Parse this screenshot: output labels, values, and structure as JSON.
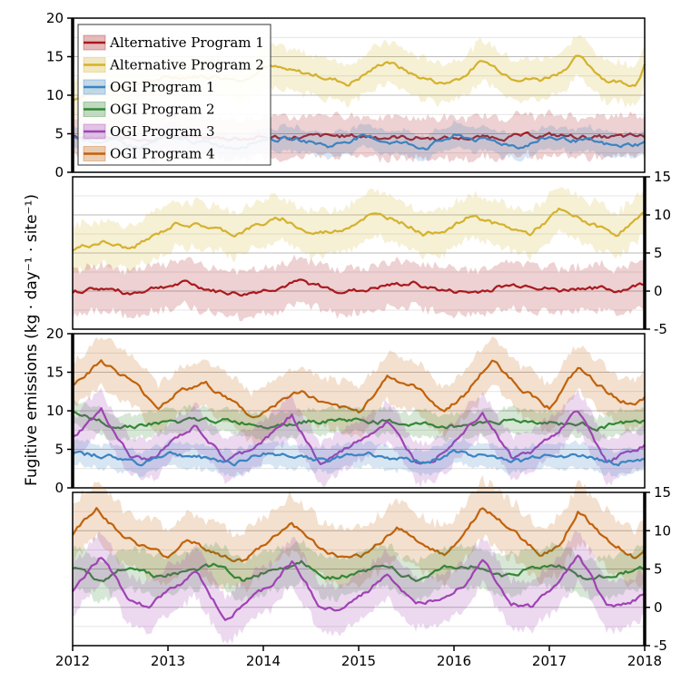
{
  "figure": {
    "ylabel": "Fugitive emissions (kg · day⁻¹ · site⁻¹)",
    "legend": [
      {
        "name": "Alternative Program 1",
        "color": "#a8191e"
      },
      {
        "name": "Alternative Program 2",
        "color": "#d4b22c"
      },
      {
        "name": "OGI Program 1",
        "color": "#3a84c1"
      },
      {
        "name": "OGI Program 2",
        "color": "#338634"
      },
      {
        "name": "OGI Program 3",
        "color": "#a042b4"
      },
      {
        "name": "OGI Program 4",
        "color": "#c1620b"
      }
    ]
  },
  "chart_data": [
    {
      "type": "line",
      "panel": 1,
      "y_axis_side": "left",
      "ylim": [
        0,
        20
      ],
      "yticks": [
        "0",
        "5",
        "10",
        "15",
        "20"
      ],
      "xlim": [
        2012,
        2018
      ],
      "grid": true,
      "legend_position": "top-left",
      "series": [
        {
          "name": "Alternative Program 2",
          "color": "#d4b22c",
          "band": 2.5,
          "x": [
            2012,
            2012.3,
            2012.6,
            2012.9,
            2013.2,
            2013.5,
            2013.8,
            2014,
            2014.3,
            2014.6,
            2014.9,
            2015.1,
            2015.3,
            2015.6,
            2015.9,
            2016.1,
            2016.3,
            2016.6,
            2016.9,
            2017.1,
            2017.3,
            2017.6,
            2017.9,
            2018
          ],
          "y": [
            9.5,
            11,
            11.5,
            12,
            12.5,
            12.5,
            12,
            14,
            13,
            12.5,
            11.5,
            13,
            14.5,
            12.5,
            11.5,
            12.5,
            14.5,
            12.5,
            12,
            13,
            15,
            12,
            11.5,
            14
          ]
        },
        {
          "name": "Alternative Program 1",
          "color": "#a8191e",
          "band": 2.5,
          "x": [
            2012,
            2012.5,
            2013,
            2013.5,
            2014,
            2014.5,
            2015,
            2015.5,
            2016,
            2016.5,
            2017,
            2017.5,
            2018
          ],
          "y": [
            4.5,
            4.3,
            4.6,
            4.4,
            4.5,
            4.6,
            4.7,
            4.5,
            4.4,
            4.6,
            4.8,
            4.5,
            4.6
          ]
        },
        {
          "name": "OGI Program 1",
          "color": "#3a84c1",
          "band": 1.5,
          "x": [
            2012,
            2012.4,
            2012.7,
            2013,
            2013.4,
            2013.7,
            2014,
            2014.4,
            2014.7,
            2015,
            2015.4,
            2015.7,
            2016,
            2016.4,
            2016.7,
            2017,
            2017.4,
            2017.7,
            2018
          ],
          "y": [
            4.5,
            4,
            3.2,
            4.5,
            3.8,
            3.3,
            4.4,
            4.2,
            3.4,
            4.6,
            3.9,
            3.3,
            4.7,
            4,
            3.4,
            4.5,
            4,
            3.3,
            3.8
          ]
        }
      ]
    },
    {
      "type": "line",
      "panel": 2,
      "y_axis_side": "right",
      "ylim": [
        -5,
        15
      ],
      "yticks": [
        "-5",
        "0",
        "5",
        "10",
        "15"
      ],
      "xlim": [
        2012,
        2018
      ],
      "grid": true,
      "series": [
        {
          "name": "Alternative Program 2",
          "color": "#d4b22c",
          "band": 2.8,
          "x": [
            2012,
            2012.3,
            2012.6,
            2012.9,
            2013.1,
            2013.4,
            2013.7,
            2013.9,
            2014.2,
            2014.5,
            2014.8,
            2015.1,
            2015.4,
            2015.7,
            2016,
            2016.2,
            2016.5,
            2016.8,
            2017.1,
            2017.4,
            2017.7,
            2018
          ],
          "y": [
            5.5,
            6.5,
            5.5,
            7.5,
            9,
            8.5,
            7.5,
            8.5,
            9.5,
            7.5,
            8,
            10,
            9.5,
            7.5,
            8.5,
            10,
            8.5,
            7.5,
            10.5,
            9,
            7.5,
            10
          ]
        },
        {
          "name": "Alternative Program 1",
          "color": "#a8191e",
          "band": 2.8,
          "x": [
            2012,
            2012.3,
            2012.6,
            2012.9,
            2013.2,
            2013.5,
            2013.8,
            2014.1,
            2014.4,
            2014.7,
            2015,
            2015.3,
            2015.6,
            2015.9,
            2016.2,
            2016.5,
            2016.8,
            2017.1,
            2017.4,
            2017.7,
            2018
          ],
          "y": [
            0,
            0.4,
            -0.3,
            0.6,
            1,
            0,
            -0.4,
            0.4,
            1.2,
            0.2,
            0,
            0.7,
            1,
            0,
            -0.2,
            0.6,
            0.9,
            0,
            0.6,
            0,
            1
          ]
        }
      ]
    },
    {
      "type": "line",
      "panel": 3,
      "y_axis_side": "left",
      "ylim": [
        0,
        20
      ],
      "yticks": [
        "0",
        "5",
        "10",
        "15",
        "20"
      ],
      "xlim": [
        2012,
        2018
      ],
      "grid": true,
      "series": [
        {
          "name": "OGI Program 4",
          "color": "#c1620b",
          "band": 3,
          "x": [
            2012,
            2012.3,
            2012.6,
            2012.9,
            2013.1,
            2013.4,
            2013.7,
            2013.9,
            2014.2,
            2014.4,
            2014.7,
            2015,
            2015.3,
            2015.6,
            2015.9,
            2016.1,
            2016.4,
            2016.7,
            2017,
            2017.3,
            2017.6,
            2017.9,
            2018
          ],
          "y": [
            13.5,
            16.5,
            14,
            10.5,
            12.5,
            13.5,
            11,
            9,
            11.5,
            12.5,
            10.5,
            9.8,
            14.5,
            13,
            10,
            12,
            16.5,
            13,
            10.5,
            15.5,
            12.5,
            10.5,
            11.5
          ]
        },
        {
          "name": "OGI Program 2",
          "color": "#338634",
          "band": 1.5,
          "x": [
            2012,
            2012.5,
            2013,
            2013.5,
            2014,
            2014.5,
            2015,
            2015.5,
            2016,
            2016.5,
            2017,
            2017.5,
            2018
          ],
          "y": [
            9.5,
            8,
            8.5,
            8.8,
            8.2,
            8.7,
            8.8,
            8.3,
            8,
            8.8,
            8.5,
            8,
            8.5
          ]
        },
        {
          "name": "OGI Program 3",
          "color": "#a042b4",
          "band": 2.5,
          "x": [
            2012,
            2012.3,
            2012.6,
            2012.8,
            2013.1,
            2013.3,
            2013.6,
            2013.8,
            2014.1,
            2014.3,
            2014.6,
            2014.8,
            2015.1,
            2015.3,
            2015.6,
            2015.8,
            2016.1,
            2016.3,
            2016.6,
            2016.8,
            2017.1,
            2017.3,
            2017.6,
            2017.8,
            2018
          ],
          "y": [
            6.5,
            10,
            4,
            3.5,
            6.5,
            8,
            3.5,
            4.5,
            7,
            9.5,
            3,
            4.5,
            7,
            8.5,
            3.5,
            4,
            7.5,
            10,
            4,
            4.5,
            7.5,
            10,
            3.5,
            4.5,
            5.5
          ]
        },
        {
          "name": "OGI Program 1",
          "color": "#3a84c1",
          "band": 1.5,
          "x": [
            2012,
            2012.4,
            2012.7,
            2013,
            2013.4,
            2013.7,
            2014,
            2014.4,
            2014.7,
            2015,
            2015.4,
            2015.7,
            2016,
            2016.4,
            2016.7,
            2017,
            2017.4,
            2017.7,
            2018
          ],
          "y": [
            4.5,
            4,
            3.2,
            4.5,
            3.8,
            3.3,
            4.4,
            4.2,
            3.4,
            4.6,
            3.9,
            3.3,
            4.7,
            4,
            3.4,
            4.5,
            4,
            3.3,
            3.8
          ]
        }
      ]
    },
    {
      "type": "line",
      "panel": 4,
      "y_axis_side": "right",
      "ylim": [
        -5,
        15
      ],
      "yticks": [
        "-5",
        "0",
        "5",
        "10",
        "15"
      ],
      "xlim": [
        2012,
        2018
      ],
      "xticks": [
        "2012",
        "2013",
        "2014",
        "2015",
        "2016",
        "2017",
        "2018"
      ],
      "grid": true,
      "series": [
        {
          "name": "OGI Program 4",
          "color": "#c1620b",
          "band": 3.5,
          "x": [
            2012,
            2012.25,
            2012.5,
            2012.8,
            2013,
            2013.2,
            2013.5,
            2013.8,
            2014,
            2014.3,
            2014.6,
            2014.9,
            2015.1,
            2015.4,
            2015.7,
            2015.9,
            2016.1,
            2016.3,
            2016.6,
            2016.9,
            2017.1,
            2017.3,
            2017.6,
            2017.9,
            2018
          ],
          "y": [
            9.5,
            13,
            9.5,
            7.5,
            6.5,
            9,
            7,
            6,
            8,
            11,
            7.5,
            6,
            7,
            10.5,
            8,
            7,
            9.5,
            13,
            10,
            7,
            8,
            12.5,
            9,
            6.5,
            8
          ]
        },
        {
          "name": "OGI Program 2",
          "color": "#338634",
          "band": 2.5,
          "x": [
            2012,
            2012.3,
            2012.6,
            2012.9,
            2013.2,
            2013.5,
            2013.8,
            2014.1,
            2014.4,
            2014.7,
            2015,
            2015.3,
            2015.6,
            2015.9,
            2016.2,
            2016.5,
            2016.8,
            2017.1,
            2017.4,
            2017.7,
            2018
          ],
          "y": [
            5,
            3.5,
            5.5,
            4,
            4.5,
            5.5,
            3.5,
            5,
            6,
            4,
            4.5,
            5.5,
            3.5,
            5,
            5.5,
            4,
            5,
            5.5,
            3.5,
            4.5,
            5
          ]
        },
        {
          "name": "OGI Program 3",
          "color": "#a042b4",
          "band": 3,
          "x": [
            2012,
            2012.3,
            2012.6,
            2012.8,
            2013.1,
            2013.3,
            2013.6,
            2013.8,
            2014.1,
            2014.3,
            2014.6,
            2014.8,
            2015.1,
            2015.3,
            2015.6,
            2015.8,
            2016.1,
            2016.3,
            2016.6,
            2016.8,
            2017.1,
            2017.3,
            2017.6,
            2017.8,
            2018
          ],
          "y": [
            2,
            6.5,
            1,
            0,
            3,
            4.5,
            -1.5,
            0.5,
            3,
            6,
            0,
            -0.5,
            2,
            4.5,
            0,
            1,
            3,
            6.5,
            0.5,
            0,
            3,
            7,
            0,
            0.5,
            1.5
          ]
        }
      ]
    }
  ]
}
